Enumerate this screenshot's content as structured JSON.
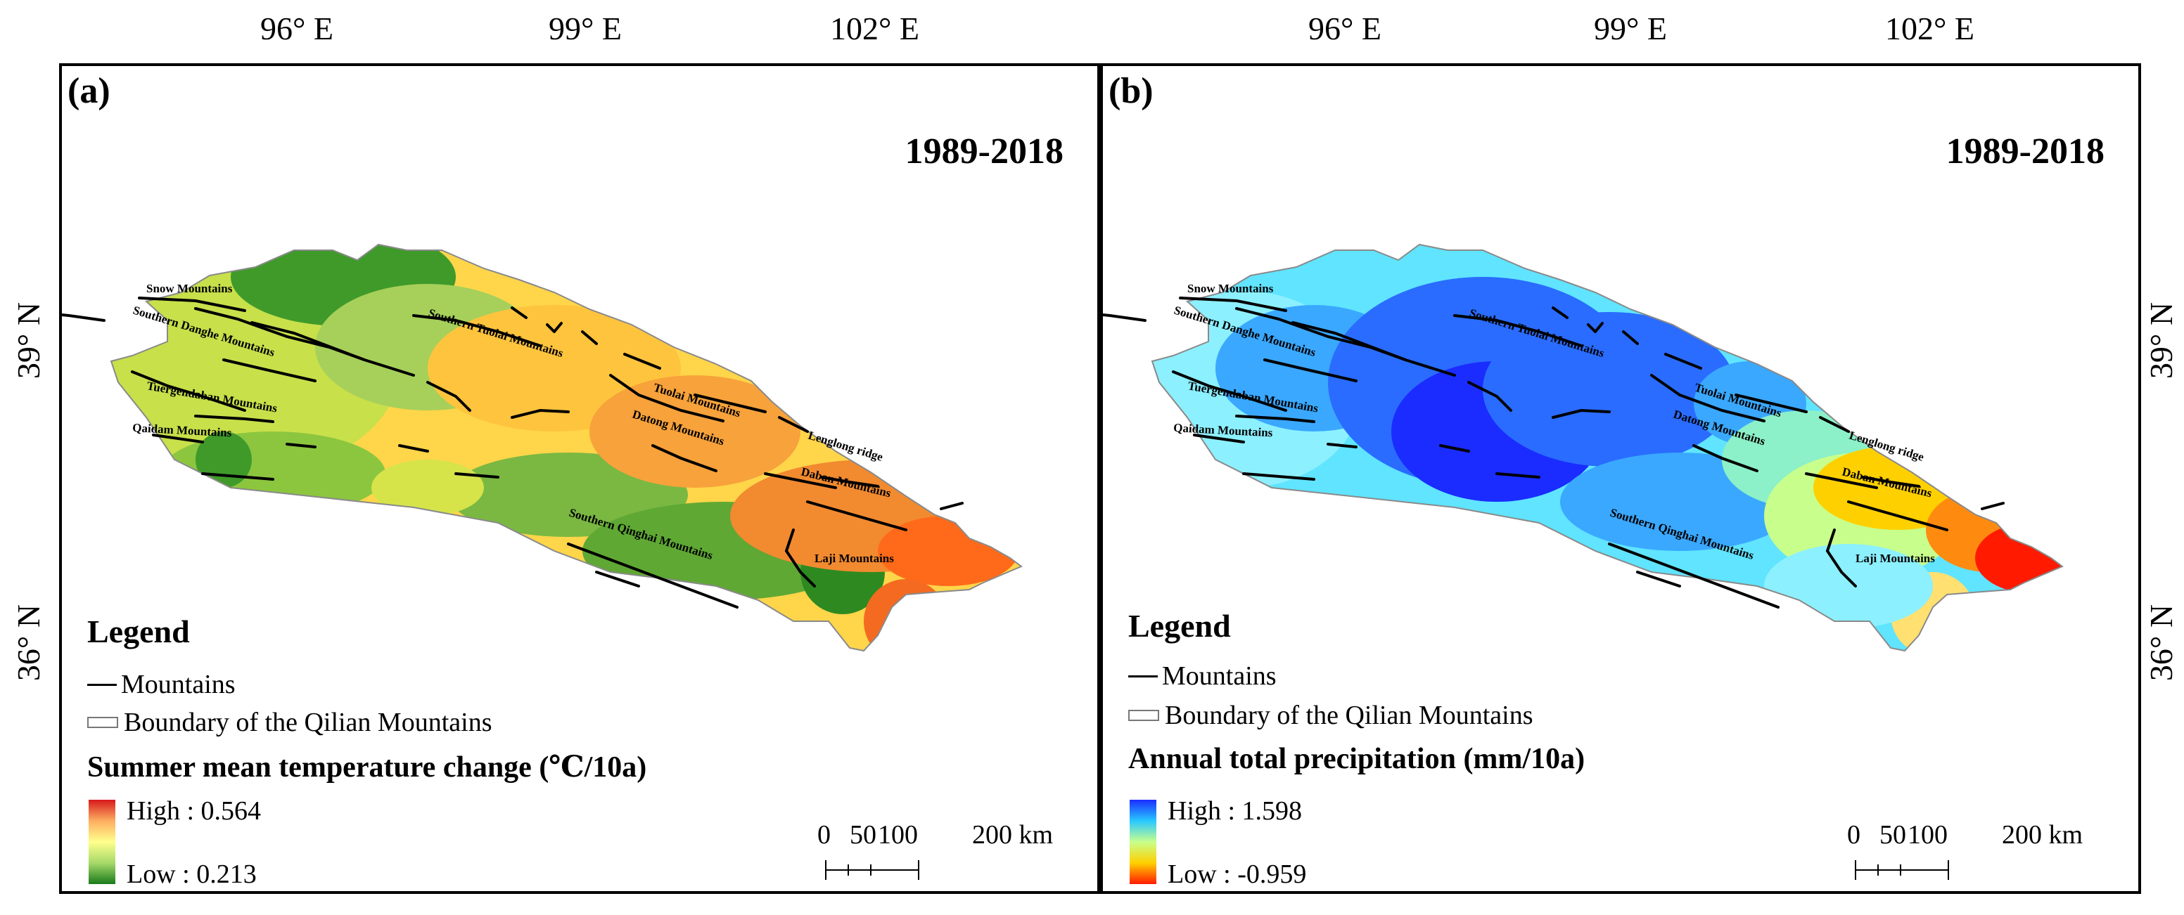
{
  "longitude_labels": [
    "96° E",
    "99° E",
    "102° E"
  ],
  "latitude_labels": [
    "39° N",
    "36° N"
  ],
  "mountains": [
    "Snow Mountains",
    "Southern Danghe Mountains",
    "Southern Tuolai Mountains",
    "Tuergendaban Mountains",
    "Qaidam Mountains",
    "Tuolai Mountains",
    "Datong Mountains",
    "Lenglong ridge",
    "Daban Mountains",
    "Southern Qinghai Mountains",
    "Laji Mountains"
  ],
  "panels": [
    {
      "label": "(a)",
      "period": "1989-2018",
      "legend_title": "Legend",
      "legend_mountains": "Mountains",
      "legend_boundary": "Boundary of the Qilian Mountains",
      "variable": "Summer mean temperature change (℃/10a)",
      "high": "High : 0.564",
      "low": "Low : 0.213",
      "colors": [
        "#d7191c",
        "#fdae61",
        "#ffff8c",
        "#a6d96a",
        "#1a7a1a"
      ]
    },
    {
      "label": "(b)",
      "period": "1989-2018",
      "legend_title": "Legend",
      "legend_mountains": "Mountains",
      "legend_boundary": "Boundary of the Qilian Mountains",
      "variable": "Annual total precipitation (mm/10a)",
      "high": "High : 1.598",
      "low": "Low : -0.959",
      "colors": [
        "#1a2cff",
        "#28c8ff",
        "#c8ff8c",
        "#ffd000",
        "#ff1a00"
      ]
    }
  ],
  "scale_bar": {
    "labels": [
      "0",
      "50",
      "100",
      "200 km"
    ]
  }
}
